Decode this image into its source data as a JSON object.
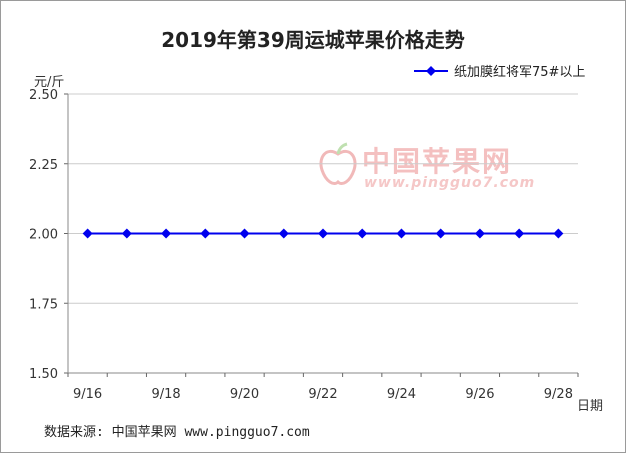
{
  "chart_data": {
    "type": "line",
    "title": "2019年第39周运城苹果价格走势",
    "ylabel": "元/斤",
    "xlabel": "日期",
    "ylim": [
      1.5,
      2.5
    ],
    "yticks": [
      "2.50",
      "2.25",
      "2.00",
      "1.75",
      "1.50"
    ],
    "x": [
      "9/16",
      "9/17",
      "9/18",
      "9/19",
      "9/20",
      "9/21",
      "9/22",
      "9/23",
      "9/24",
      "9/25",
      "9/26",
      "9/27",
      "9/28"
    ],
    "xtick_labels": [
      "9/16",
      "9/18",
      "9/20",
      "9/22",
      "9/24",
      "9/26",
      "9/28"
    ],
    "series": [
      {
        "name": "纸加膜红将军75#以上",
        "values": [
          2.0,
          2.0,
          2.0,
          2.0,
          2.0,
          2.0,
          2.0,
          2.0,
          2.0,
          2.0,
          2.0,
          2.0,
          2.0
        ],
        "color": "#0000ee"
      }
    ],
    "grid": true,
    "legend_position": "top-right"
  },
  "source": "数据来源: 中国苹果网 www.pingguo7.com",
  "watermark": {
    "main": "中国苹果网",
    "sub": "www.pingguo7.com"
  }
}
